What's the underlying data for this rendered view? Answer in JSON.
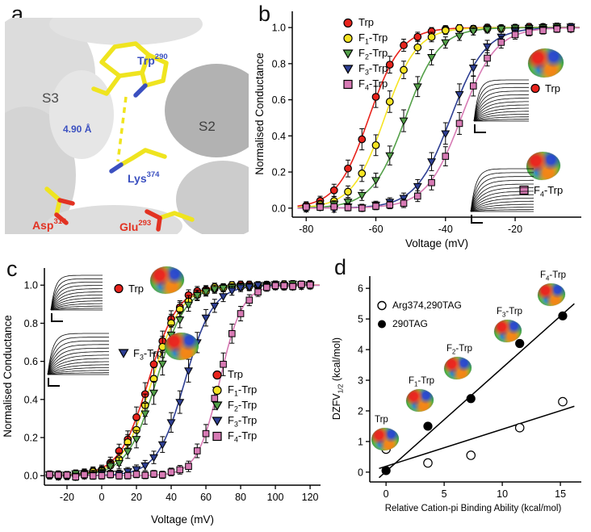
{
  "figure": {
    "panel_letters": {
      "a": "a",
      "b": "b",
      "c": "c",
      "d": "d"
    }
  },
  "panel_a": {
    "labels": {
      "s3": "S3",
      "s2": "S2",
      "trp": {
        "base": "Trp",
        "sup": "290"
      },
      "lys": {
        "base": "Lys",
        "sup": "374"
      },
      "asp": {
        "base": "Asp",
        "sup": "316"
      },
      "glu": {
        "base": "Glu",
        "sup": "293"
      },
      "distance": "4.90 Å"
    },
    "colors": {
      "stick": "#efe41f",
      "nitrogen": "#3b50c0",
      "oxygen": "#e23222",
      "label_blue": "#3b50c0",
      "label_red": "#e23222",
      "helix_light": "#d9d9d9",
      "helix_dark": "#b2b2b2"
    }
  },
  "insets": {
    "b": [
      {
        "label": {
          "base": "Trp",
          "sub": "",
          "suffix": ""
        },
        "marker": "circle",
        "color": "#e8231c"
      },
      {
        "label": {
          "base": "F",
          "sub": "4",
          "suffix": "-Trp"
        },
        "marker": "square",
        "color": "#d77ab4"
      }
    ],
    "c": [
      {
        "label": {
          "base": "Trp",
          "sub": "",
          "suffix": ""
        },
        "marker": "circle",
        "color": "#e8231c"
      },
      {
        "label": {
          "base": "F",
          "sub": "3",
          "suffix": "-Trp"
        },
        "marker": "triangle",
        "color": "#2e3f93"
      }
    ]
  },
  "chart_data": [
    {
      "id": "b",
      "type": "line",
      "title": "",
      "xlabel": "Voltage (mV)",
      "ylabel": "Normalised Conductance",
      "xlim": [
        -84,
        -1
      ],
      "ylim": [
        -0.05,
        1.09
      ],
      "xticks": [
        -80,
        -60,
        -40,
        -20
      ],
      "yticks": [
        0,
        0.2,
        0.4,
        0.6,
        0.8,
        1
      ],
      "ydecimals": 1,
      "grid": false,
      "legend_position": "upper-left-inside",
      "marker_start": -80,
      "marker_end": -4,
      "marker_step": 4,
      "series": [
        {
          "name": "Trp",
          "label": {
            "base": "Trp",
            "sub": "",
            "suffix": ""
          },
          "color": "#e8231c",
          "marker": "circle",
          "v_half": -62.0,
          "slope": 4.6
        },
        {
          "name": "F1-Trp",
          "label": {
            "base": "F",
            "sub": "1",
            "suffix": "-Trp"
          },
          "color": "#f6e423",
          "marker": "circle",
          "v_half": -57.5,
          "slope": 4.6
        },
        {
          "name": "F2-Trp",
          "label": {
            "base": "F",
            "sub": "2",
            "suffix": "-Trp"
          },
          "color": "#54a049",
          "marker": "triangle",
          "v_half": -51.5,
          "slope": 4.8
        },
        {
          "name": "F3-Trp",
          "label": {
            "base": "F",
            "sub": "3",
            "suffix": "-Trp"
          },
          "color": "#2e3f93",
          "marker": "triangle",
          "v_half": -38.5,
          "slope": 5.0
        },
        {
          "name": "F4-Trp",
          "label": {
            "base": "F",
            "sub": "4",
            "suffix": "-Trp"
          },
          "color": "#d77ab4",
          "marker": "square",
          "v_half": -35.5,
          "slope": 5.0
        }
      ]
    },
    {
      "id": "c",
      "type": "line",
      "title": "",
      "xlabel": "Voltage (mV)",
      "ylabel": "Normalised Conductance",
      "xlim": [
        -33,
        126
      ],
      "ylim": [
        -0.05,
        1.09
      ],
      "xticks": [
        -20,
        0,
        20,
        40,
        60,
        80,
        100,
        120
      ],
      "yticks": [
        0,
        0.2,
        0.4,
        0.6,
        0.8,
        1
      ],
      "ydecimals": 1,
      "grid": false,
      "legend_position": "lower-right-inside",
      "marker_start": -30,
      "marker_end": 120,
      "marker_step": 5,
      "series": [
        {
          "name": "Trp",
          "label": {
            "base": "Trp",
            "sub": "",
            "suffix": ""
          },
          "color": "#e8231c",
          "marker": "circle",
          "v_half": 27.0,
          "slope": 8.5
        },
        {
          "name": "F1-Trp",
          "label": {
            "base": "F",
            "sub": "1",
            "suffix": "-Trp"
          },
          "color": "#f6e423",
          "marker": "circle",
          "v_half": 29.0,
          "slope": 8.5
        },
        {
          "name": "F2-Trp",
          "label": {
            "base": "F",
            "sub": "2",
            "suffix": "-Trp"
          },
          "color": "#54a049",
          "marker": "triangle",
          "v_half": 31.5,
          "slope": 8.5
        },
        {
          "name": "F3-Trp",
          "label": {
            "base": "F",
            "sub": "3",
            "suffix": "-Trp"
          },
          "color": "#2e3f93",
          "marker": "triangle",
          "v_half": 48.0,
          "slope": 8.0
        },
        {
          "name": "F4-Trp",
          "label": {
            "base": "F",
            "sub": "4",
            "suffix": "-Trp"
          },
          "color": "#d77ab4",
          "marker": "square",
          "v_half": 68.0,
          "slope": 6.5
        }
      ]
    },
    {
      "id": "d",
      "type": "scatter",
      "title": "",
      "xlabel": "Relative Cation-pi Binding Ability (kcal/mol)",
      "ylabel": {
        "base": "DZFV",
        "sub": "1/2",
        "suffix": " (kcal/mol)"
      },
      "xlim": [
        -1.4,
        16.8
      ],
      "ylim": [
        -0.32,
        6.4
      ],
      "xticks": [
        0,
        5,
        10,
        15
      ],
      "yticks": [
        0,
        1,
        2,
        3,
        4,
        5,
        6
      ],
      "ydecimals": 0,
      "grid": false,
      "legend_position": "upper-left-inside",
      "series": [
        {
          "name": "Arg374,290TAG",
          "marker": "open-circle",
          "color": "#ffffff",
          "points": [
            [
              0,
              0.75
            ],
            [
              3.6,
              0.3
            ],
            [
              7.3,
              0.55
            ],
            [
              11.5,
              1.45
            ],
            [
              15.2,
              2.3
            ]
          ],
          "fit": [
            [
              -0.6,
              0.12
            ],
            [
              16.2,
              2.15
            ]
          ]
        },
        {
          "name": "290TAG",
          "marker": "filled-circle",
          "color": "#000000",
          "points": [
            [
              0,
              0.05
            ],
            [
              3.6,
              1.5
            ],
            [
              7.3,
              2.4
            ],
            [
              11.5,
              4.2
            ],
            [
              15.2,
              5.1
            ]
          ],
          "fit": [
            [
              -0.6,
              -0.18
            ],
            [
              16.2,
              5.5
            ]
          ]
        }
      ],
      "annotations": [
        {
          "label": {
            "base": "Trp",
            "sub": "",
            "suffix": ""
          }
        },
        {
          "label": {
            "base": "F",
            "sub": "1",
            "suffix": "-Trp"
          }
        },
        {
          "label": {
            "base": "F",
            "sub": "2",
            "suffix": "-Trp"
          }
        },
        {
          "label": {
            "base": "F",
            "sub": "3",
            "suffix": "-Trp"
          }
        },
        {
          "label": {
            "base": "F",
            "sub": "4",
            "suffix": "-Trp"
          }
        }
      ]
    }
  ]
}
